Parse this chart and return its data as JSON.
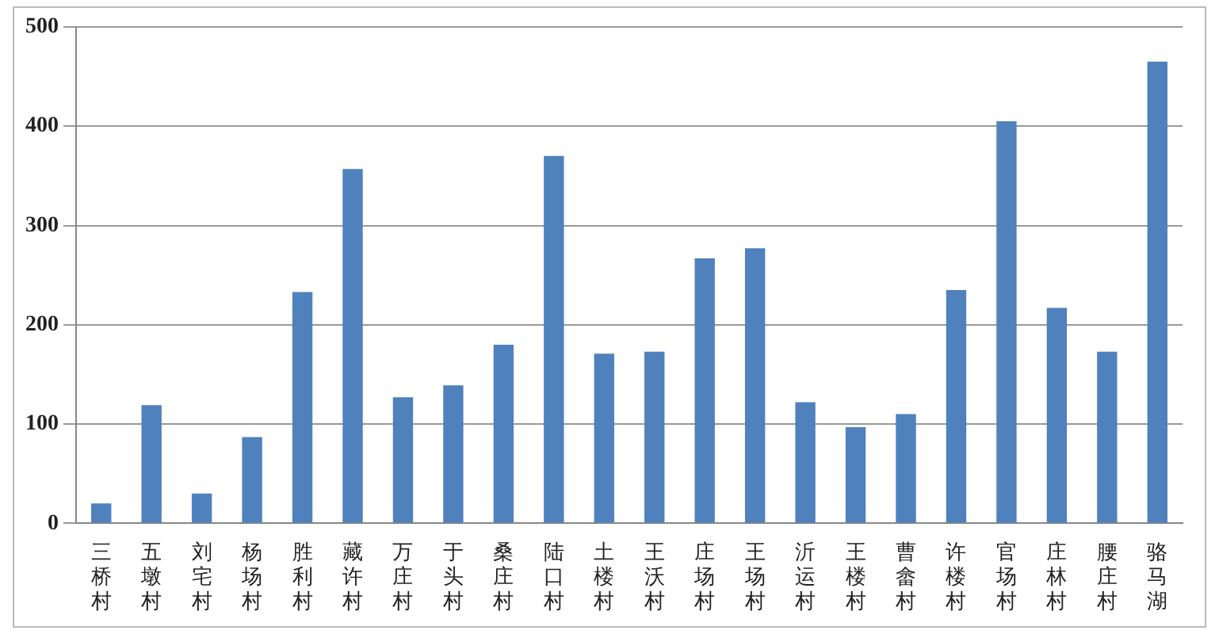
{
  "chart_data": {
    "type": "bar",
    "categories": [
      "三桥村",
      "五墩村",
      "刘宅村",
      "杨场村",
      "胜利村",
      "藏许村",
      "万庄村",
      "于头村",
      "桑庄村",
      "陆口村",
      "土楼村",
      "王沃村",
      "庄场村",
      "王场村",
      "沂运村",
      "王楼村",
      "曹畲村",
      "许楼村",
      "官场村",
      "庄林村",
      "腰庄村",
      "骆马湖"
    ],
    "values": [
      20,
      119,
      30,
      87,
      233,
      357,
      127,
      139,
      180,
      370,
      171,
      173,
      267,
      277,
      122,
      97,
      110,
      235,
      405,
      217,
      173,
      465
    ],
    "color": "#4f81bd",
    "ylim": [
      0,
      500
    ],
    "yticks": [
      0,
      100,
      200,
      300,
      400,
      500
    ],
    "grid": "y"
  }
}
